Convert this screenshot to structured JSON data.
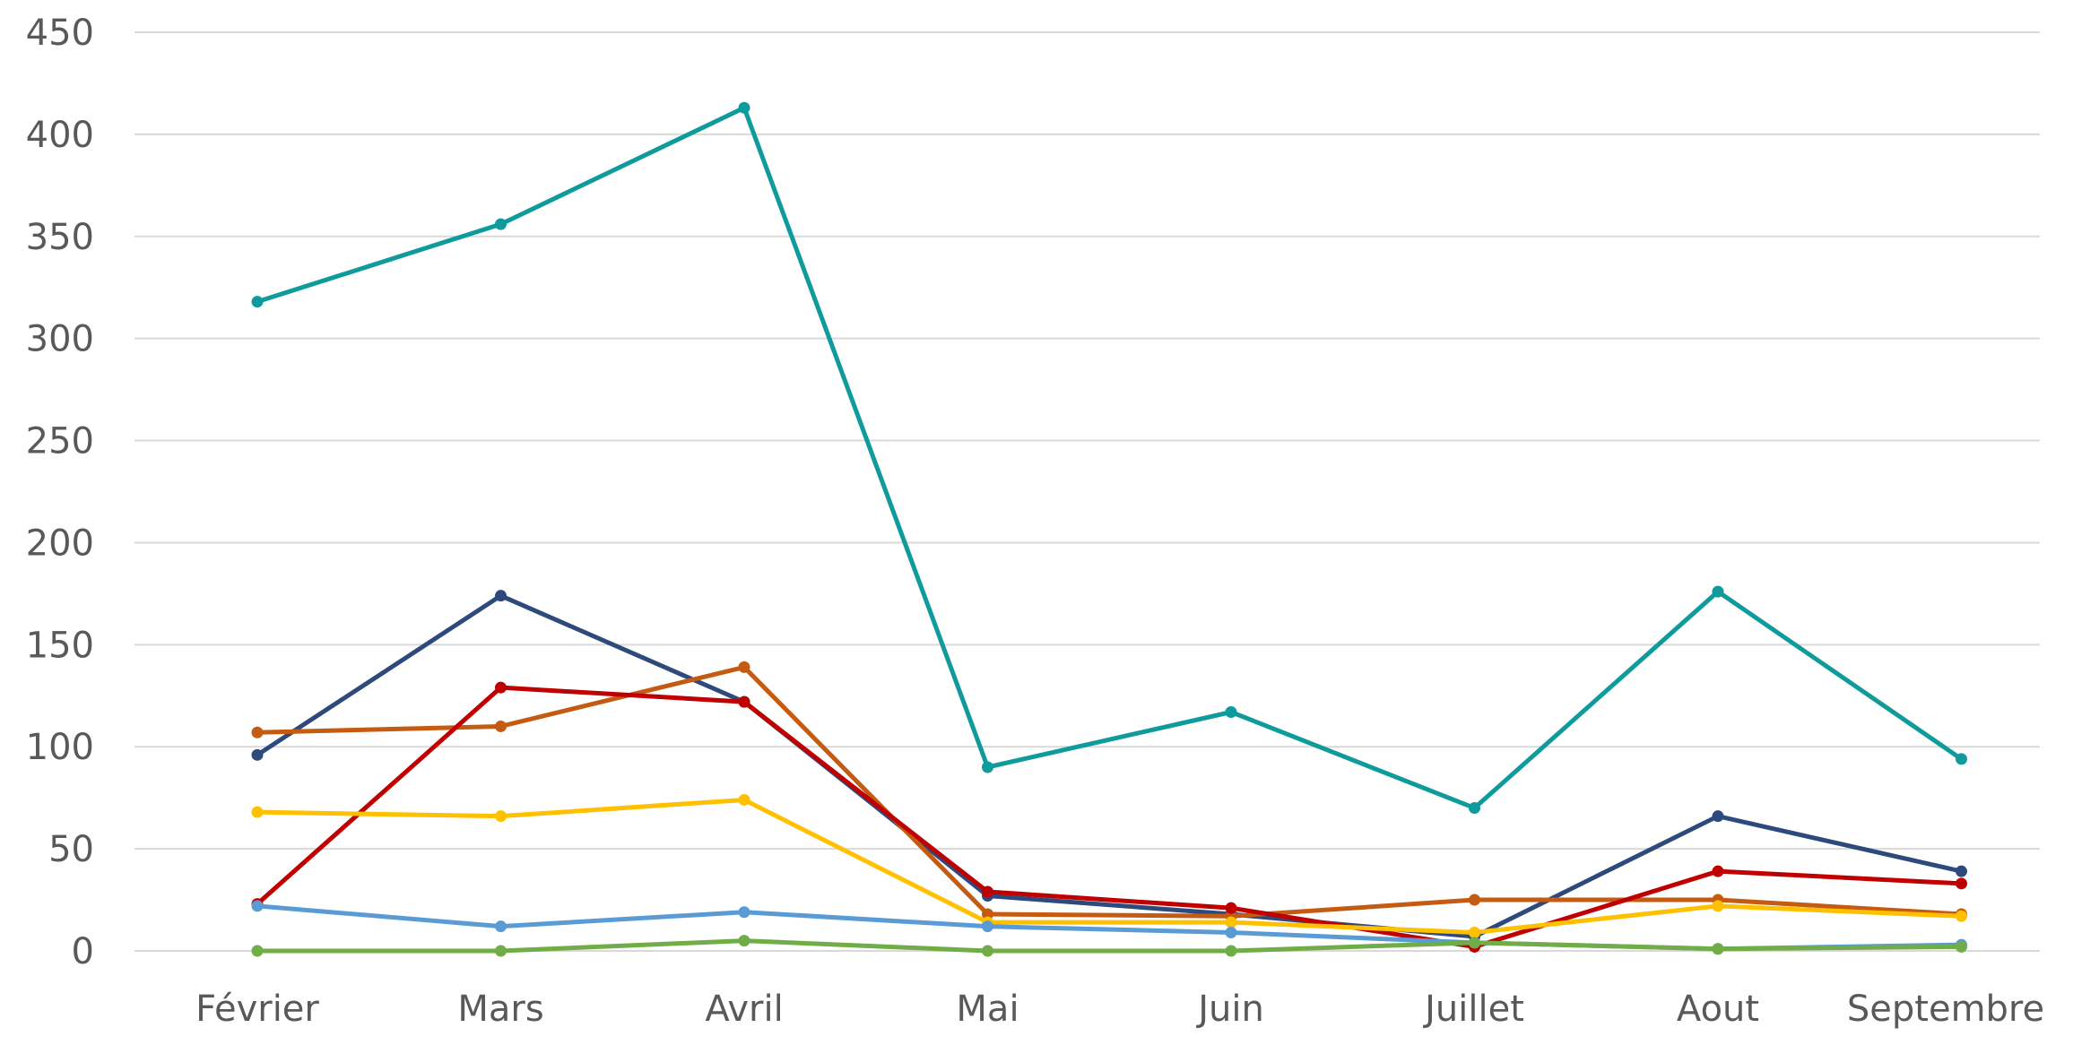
{
  "chart_data": {
    "type": "line",
    "categories": [
      "Février",
      "Mars",
      "Avril",
      "Mai",
      "Juin",
      "Juillet",
      "Aout",
      "Septembre"
    ],
    "ylim": [
      0,
      450
    ],
    "yticks": [
      0,
      50,
      100,
      150,
      200,
      250,
      300,
      350,
      400,
      450
    ],
    "grid": true,
    "legend": "none",
    "series": [
      {
        "color": "#0f9b9b",
        "values": [
          318,
          356,
          413,
          90,
          117,
          70,
          176,
          94
        ]
      },
      {
        "color": "#2e4a7d",
        "values": [
          96,
          174,
          122,
          27,
          18,
          7,
          66,
          39
        ]
      },
      {
        "color": "#c55a11",
        "values": [
          107,
          110,
          139,
          18,
          17,
          25,
          25,
          18
        ]
      },
      {
        "color": "#c00000",
        "values": [
          23,
          129,
          122,
          29,
          21,
          2,
          39,
          33
        ]
      },
      {
        "color": "#ffc000",
        "values": [
          68,
          66,
          74,
          14,
          14,
          9,
          22,
          17
        ]
      },
      {
        "color": "#5b9bd5",
        "values": [
          22,
          12,
          19,
          12,
          9,
          4,
          1,
          3
        ]
      },
      {
        "color": "#70ad47",
        "values": [
          0,
          0,
          5,
          0,
          0,
          4,
          1,
          2
        ]
      }
    ]
  }
}
